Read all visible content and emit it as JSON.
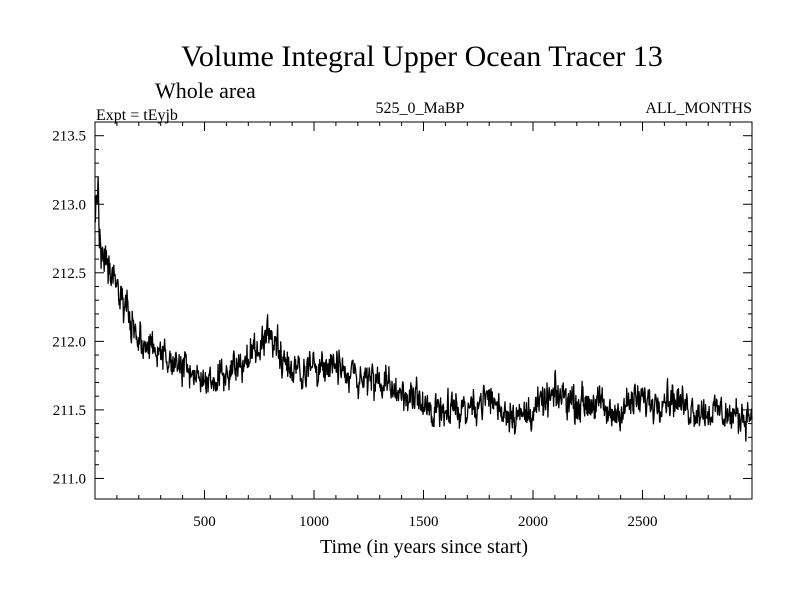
{
  "chart_data": {
    "type": "line",
    "title": "Volume Integral Upper Ocean Tracer 13",
    "subtitle": "Whole area",
    "expt_label": "Expt = tEyjb",
    "run_label": "525_0_MaBP",
    "months_label": "ALL_MONTHS",
    "xlabel": "Time (in years since start)",
    "ylabel": "",
    "xlim": [
      0,
      3000
    ],
    "ylim": [
      210.85,
      213.6
    ],
    "x_ticks": [
      500,
      1000,
      1500,
      2000,
      2500
    ],
    "y_ticks": [
      211.0,
      211.5,
      212.0,
      212.5,
      213.0,
      213.5
    ],
    "x_tick_labels": [
      "500",
      "1000",
      "1500",
      "2000",
      "2500"
    ],
    "y_tick_labels": [
      "211.0",
      "211.5",
      "212.0",
      "212.5",
      "213.0",
      "213.5"
    ],
    "line_color": "#000000",
    "series": [
      {
        "name": "Tracer 13",
        "x": [
          0,
          10,
          20,
          30,
          40,
          50,
          60,
          80,
          100,
          120,
          150,
          180,
          200,
          230,
          260,
          300,
          350,
          400,
          450,
          500,
          550,
          600,
          650,
          700,
          750,
          800,
          830,
          850,
          900,
          950,
          1000,
          1050,
          1100,
          1150,
          1200,
          1250,
          1300,
          1350,
          1400,
          1450,
          1500,
          1550,
          1600,
          1650,
          1700,
          1750,
          1800,
          1850,
          1900,
          1950,
          2000,
          2050,
          2100,
          2150,
          2200,
          2250,
          2300,
          2350,
          2400,
          2450,
          2500,
          2550,
          2600,
          2650,
          2700,
          2750,
          2800,
          2850,
          2900,
          2950,
          3000
        ],
        "y": [
          212.9,
          213.05,
          212.85,
          212.75,
          212.6,
          212.55,
          212.5,
          212.45,
          212.35,
          212.3,
          212.2,
          212.1,
          212.0,
          211.95,
          211.95,
          211.9,
          211.85,
          211.8,
          211.75,
          211.72,
          211.7,
          211.78,
          211.82,
          211.9,
          211.95,
          212.05,
          212.0,
          211.9,
          211.8,
          211.78,
          211.82,
          211.85,
          211.8,
          211.75,
          211.75,
          211.72,
          211.7,
          211.65,
          211.62,
          211.6,
          211.5,
          211.5,
          211.55,
          211.5,
          211.52,
          211.55,
          211.6,
          211.5,
          211.48,
          211.45,
          211.5,
          211.55,
          211.6,
          211.6,
          211.55,
          211.55,
          211.55,
          211.45,
          211.5,
          211.55,
          211.58,
          211.55,
          211.6,
          211.58,
          211.52,
          211.5,
          211.48,
          211.5,
          211.45,
          211.45,
          211.48
        ],
        "noise_amplitude": [
          0.2,
          0.2,
          0.2,
          0.18,
          0.16,
          0.15,
          0.15,
          0.15,
          0.14,
          0.14,
          0.13,
          0.13,
          0.13,
          0.13,
          0.13,
          0.13,
          0.13,
          0.13,
          0.13,
          0.13,
          0.13,
          0.13,
          0.13,
          0.13,
          0.14,
          0.15,
          0.15,
          0.14,
          0.13,
          0.13,
          0.13,
          0.13,
          0.13,
          0.13,
          0.13,
          0.13,
          0.13,
          0.13,
          0.13,
          0.13,
          0.13,
          0.13,
          0.13,
          0.13,
          0.13,
          0.13,
          0.13,
          0.13,
          0.13,
          0.13,
          0.13,
          0.13,
          0.13,
          0.13,
          0.13,
          0.13,
          0.13,
          0.13,
          0.13,
          0.13,
          0.13,
          0.13,
          0.13,
          0.13,
          0.13,
          0.13,
          0.13,
          0.13,
          0.13,
          0.13,
          0.13
        ]
      }
    ]
  }
}
